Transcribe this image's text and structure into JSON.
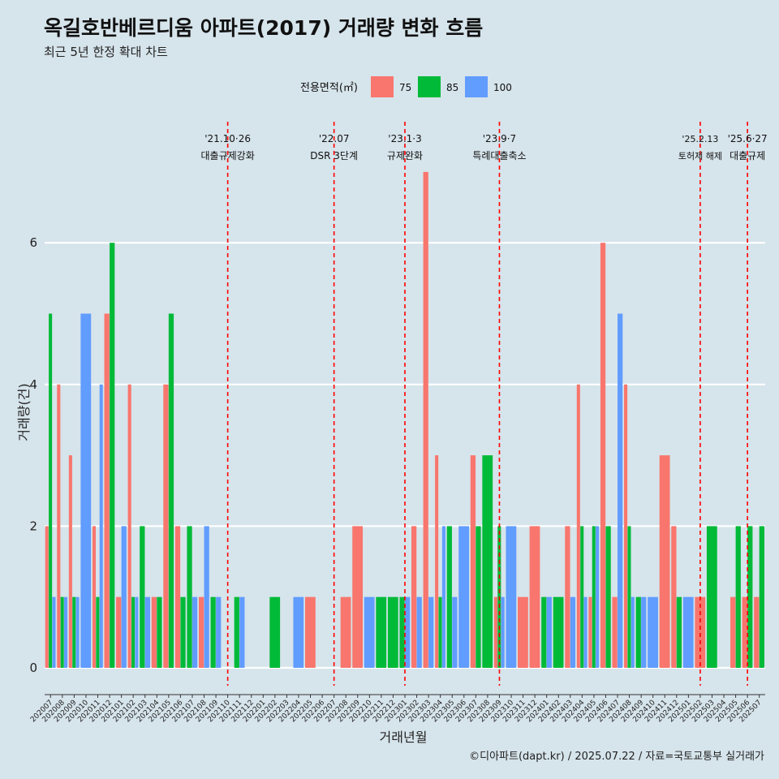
{
  "chart_data": {
    "type": "bar",
    "title": "옥길호반베르디움 아파트(2017) 거래량 변화 흐름",
    "subtitle": "최근 5년 한정 확대 차트",
    "xlabel": "거래년월",
    "ylabel": "거래량(건)",
    "ylim": [
      0,
      7.2
    ],
    "yticks": [
      0,
      2,
      4,
      6
    ],
    "grid": "horizontal",
    "legend": {
      "title": "전용면적(㎡)",
      "placement": "top"
    },
    "categories": [
      "202007",
      "202008",
      "202009",
      "202010",
      "202011",
      "202012",
      "202101",
      "202102",
      "202103",
      "202104",
      "202105",
      "202106",
      "202107",
      "202108",
      "202109",
      "202110",
      "202111",
      "202112",
      "202201",
      "202202",
      "202203",
      "202204",
      "202205",
      "202206",
      "202207",
      "202208",
      "202209",
      "202210",
      "202211",
      "202212",
      "202301",
      "202302",
      "202303",
      "202304",
      "202305",
      "202306",
      "202307",
      "202308",
      "202309",
      "202310",
      "202311",
      "202312",
      "202401",
      "202402",
      "202403",
      "202404",
      "202405",
      "202406",
      "202407",
      "202408",
      "202409",
      "202410",
      "202411",
      "202412",
      "202501",
      "202502",
      "202503",
      "202504",
      "202505",
      "202506",
      "202507"
    ],
    "series": [
      {
        "name": "75",
        "color": "#f8766d",
        "values": [
          2,
          4,
          3,
          0,
          2,
          5,
          1,
          4,
          0,
          1,
          4,
          2,
          0,
          1,
          0,
          0,
          0,
          0,
          0,
          0,
          0,
          0,
          1,
          0,
          0,
          1,
          2,
          0,
          0,
          0,
          0,
          2,
          7,
          3,
          0,
          0,
          3,
          0,
          1,
          0,
          1,
          2,
          0,
          0,
          2,
          4,
          1,
          6,
          1,
          4,
          0,
          0,
          3,
          2,
          0,
          1,
          0,
          0,
          1,
          1,
          1
        ]
      },
      {
        "name": "85",
        "color": "#00ba38",
        "values": [
          5,
          1,
          1,
          0,
          1,
          6,
          0,
          1,
          2,
          1,
          5,
          1,
          2,
          0,
          1,
          0,
          1,
          0,
          0,
          1,
          0,
          0,
          0,
          0,
          0,
          0,
          0,
          0,
          1,
          1,
          1,
          0,
          0,
          1,
          2,
          0,
          2,
          3,
          2,
          0,
          0,
          0,
          1,
          1,
          0,
          2,
          2,
          2,
          0,
          2,
          1,
          0,
          0,
          1,
          0,
          0,
          2,
          0,
          2,
          2,
          2
        ]
      },
      {
        "name": "100",
        "color": "#619cff",
        "values": [
          1,
          1,
          1,
          5,
          4,
          0,
          2,
          1,
          1,
          0,
          0,
          0,
          1,
          2,
          1,
          0,
          1,
          0,
          0,
          0,
          0,
          1,
          0,
          0,
          0,
          0,
          0,
          1,
          0,
          0,
          1,
          1,
          1,
          2,
          1,
          2,
          0,
          0,
          1,
          2,
          0,
          0,
          1,
          0,
          1,
          1,
          2,
          0,
          5,
          1,
          1,
          1,
          0,
          0,
          1,
          0,
          0,
          0,
          0,
          0,
          0
        ]
      }
    ],
    "events": [
      {
        "date": "'21.10·26",
        "label": "대출규제강화",
        "at": "202110"
      },
      {
        "date": "'22.07",
        "label": "DSR 3단계",
        "at": "202207"
      },
      {
        "date": "'23.1·3",
        "label": "규제완화",
        "at": "202301"
      },
      {
        "date": "'23.9·7",
        "label": "특례대출축소",
        "at": "202309"
      },
      {
        "date": "'25.2.13",
        "label": "토허제 해제",
        "at": "202502"
      },
      {
        "date": "'25.6·27",
        "label": "대출규제",
        "at": "202506"
      }
    ],
    "caption": "©디아파트(dapt.kr) / 2025.07.22 / 자료=국토교통부 실거래가"
  }
}
